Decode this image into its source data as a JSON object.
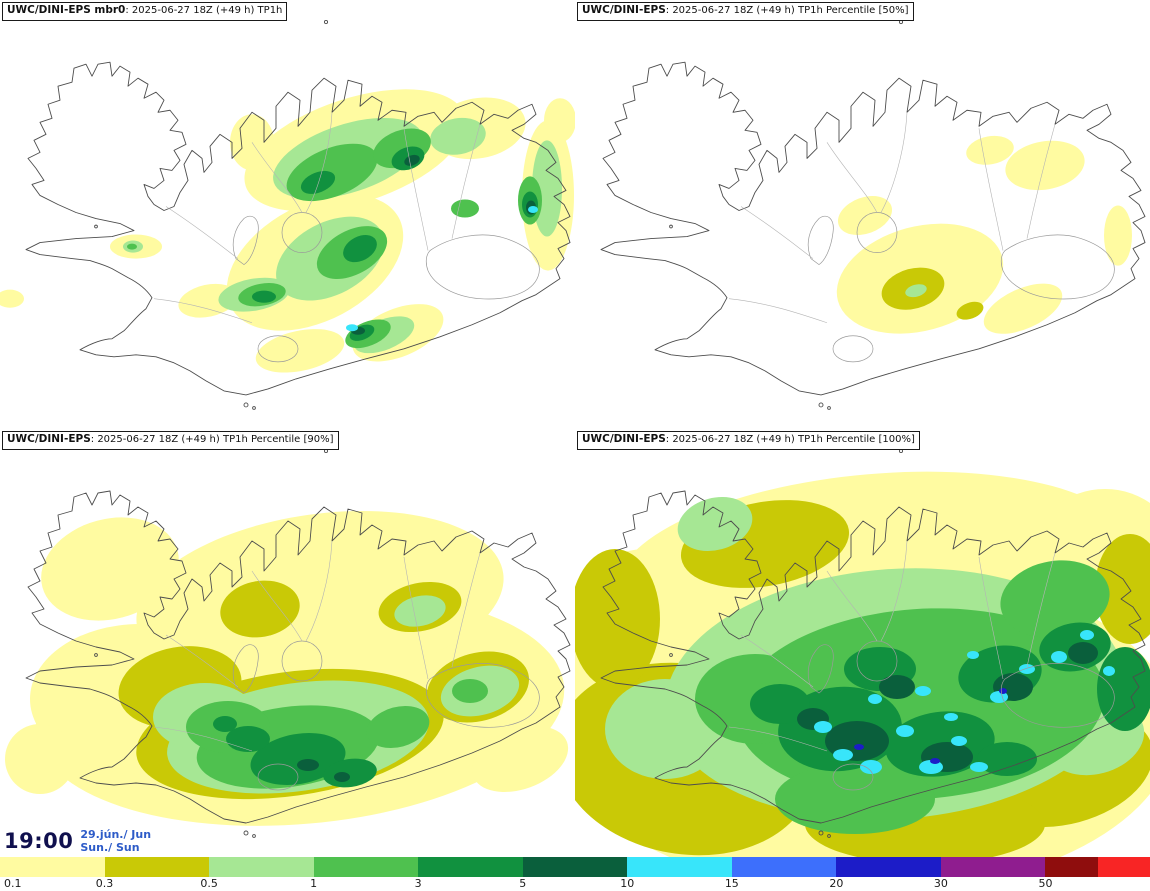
{
  "panels": [
    {
      "title_bold": "UWC/DINI-EPS mbr0",
      "title_rest": ": 2025-06-27 18Z (+49 h) TP1h"
    },
    {
      "title_bold": "UWC/DINI-EPS",
      "title_rest": ": 2025-06-27 18Z (+49 h) TP1h Percentile [50%]"
    },
    {
      "title_bold": "UWC/DINI-EPS",
      "title_rest": ": 2025-06-27 18Z (+49 h) TP1h Percentile [90%]"
    },
    {
      "title_bold": "UWC/DINI-EPS",
      "title_rest": ": 2025-06-27 18Z (+49 h) TP1h Percentile [100%]"
    }
  ],
  "time_label": {
    "time": "19:00",
    "date": "29.jún./ Jun",
    "day": "Sun./ Sun"
  },
  "colorbar": {
    "ticks": [
      "0.1",
      "0.3",
      "0.5",
      "1",
      "3",
      "5",
      "10",
      "15",
      "20",
      "30",
      "50"
    ],
    "colors": [
      "#fffba1",
      "#c9c906",
      "#a6e794",
      "#4fc14f",
      "#11913f",
      "#0a5f3c",
      "#38e5fa",
      "#3d6ffc",
      "#1c1cc8",
      "#8f1d8f",
      "#8f0d0d",
      "#f82525"
    ]
  },
  "palette": {
    "pale_yellow": "#fffba1",
    "olive": "#c9c906",
    "light_green": "#a6e794",
    "green": "#4fc14f",
    "dark_green": "#11913f",
    "teal_green": "#0a5f3c",
    "cyan": "#38e5fa",
    "blue": "#3d6ffc",
    "navy": "#1c1cc8",
    "purple": "#8f1d8f",
    "maroon": "#8f0d0d",
    "red": "#f82525",
    "coastline": "#4d4d4d",
    "interior_line": "#b4b4b4",
    "glacier_line": "#9a9a9a"
  },
  "colors": {
    "time_text": "#10104e",
    "date_text": "#2d5bc8",
    "tick_text": "#1a1a1a"
  }
}
